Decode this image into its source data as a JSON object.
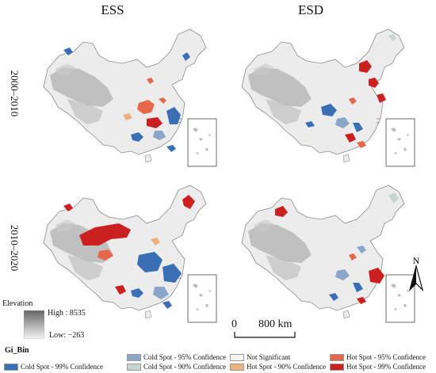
{
  "columns": [
    "ESS",
    "ESD"
  ],
  "rows": [
    "2000–2010",
    "2010–2020"
  ],
  "elevation": {
    "title": "Elevation",
    "high": "High : 8535",
    "low": "Low: −263"
  },
  "scale_bar": {
    "zero": "0",
    "distance": "800 km"
  },
  "north_label": "N",
  "legend": {
    "title": "Gi_Bin",
    "items": [
      {
        "label": "Cold Spot - 99% Confidence",
        "color": "#3a6fb5"
      },
      {
        "label": "Cold Spot - 95% Confidence",
        "color": "#8aa6c8"
      },
      {
        "label": "Cold Spot - 90% Confidence",
        "color": "#c6d6cf"
      },
      {
        "label": "Not Significant",
        "color": "#f4f4f0"
      },
      {
        "label": "Hot Spot - 90% Confidence",
        "color": "#f0b07a"
      },
      {
        "label": "Hot Spot - 95% Confidence",
        "color": "#e5684a"
      },
      {
        "label": "Hot Spot - 99% Confidence",
        "color": "#cc1f1f"
      }
    ]
  }
}
